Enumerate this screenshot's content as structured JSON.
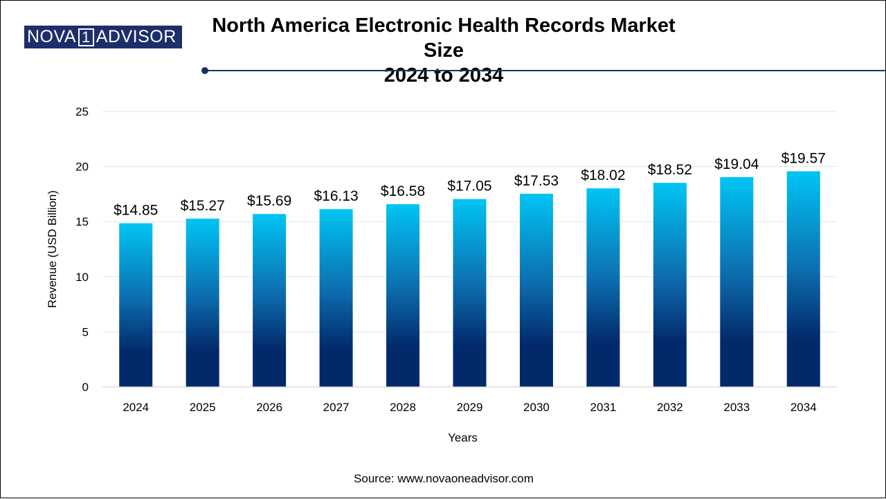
{
  "brand": {
    "logo_left": "NOVA",
    "logo_mark": "1",
    "logo_right": "ADVISOR"
  },
  "colors": {
    "bar_top": "#00c5f4",
    "bar_bottom": "#022a6b",
    "brand": "#1c2f6b"
  },
  "source": "Source: www.novaoneadvisor.com",
  "chart_data": {
    "type": "bar",
    "title_line1": "North America Electronic Health Records Market Size",
    "title_line2": "2024 to 2034",
    "xlabel": "Years",
    "ylabel": "Revenue (USD Billion)",
    "ylim": [
      0,
      25
    ],
    "yticks": [
      0,
      5,
      10,
      15,
      20,
      25
    ],
    "grid": true,
    "categories": [
      "2024",
      "2025",
      "2026",
      "2027",
      "2028",
      "2029",
      "2030",
      "2031",
      "2032",
      "2033",
      "2034"
    ],
    "values": [
      14.85,
      15.27,
      15.69,
      16.13,
      16.58,
      17.05,
      17.53,
      18.02,
      18.52,
      19.04,
      19.57
    ],
    "data_labels": [
      "$14.85",
      "$15.27",
      "$15.69",
      "$16.13",
      "$16.58",
      "$17.05",
      "$17.53",
      "$18.02",
      "$18.52",
      "$19.04",
      "$19.57"
    ]
  }
}
